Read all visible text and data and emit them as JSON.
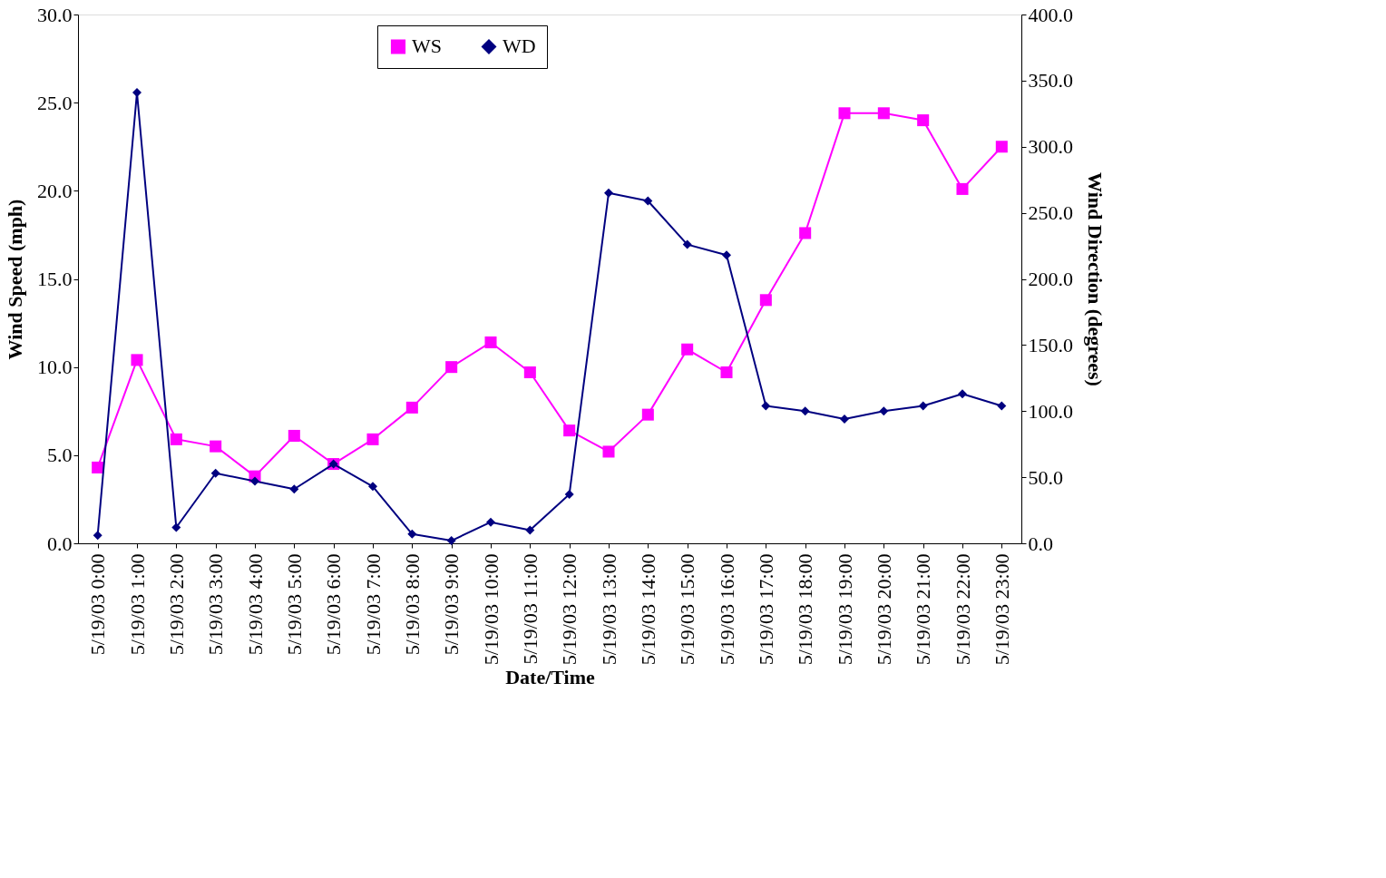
{
  "chart_data": {
    "type": "line",
    "xlabel": "Date/Time",
    "ylabel": "Wind Speed (mph)",
    "y2label": "Wind Direction (degrees)",
    "categories": [
      "5/19/03 0:00",
      "5/19/03 1:00",
      "5/19/03 2:00",
      "5/19/03 3:00",
      "5/19/03 4:00",
      "5/19/03 5:00",
      "5/19/03 6:00",
      "5/19/03 7:00",
      "5/19/03 8:00",
      "5/19/03 9:00",
      "5/19/03 10:00",
      "5/19/03 11:00",
      "5/19/03 12:00",
      "5/19/03 13:00",
      "5/19/03 14:00",
      "5/19/03 15:00",
      "5/19/03 16:00",
      "5/19/03 17:00",
      "5/19/03 18:00",
      "5/19/03 19:00",
      "5/19/03 20:00",
      "5/19/03 21:00",
      "5/19/03 22:00",
      "5/19/03 23:00"
    ],
    "series": [
      {
        "name": "WS",
        "color": "#ff00ff",
        "marker": "square",
        "values": [
          4.3,
          10.4,
          5.9,
          5.5,
          3.8,
          6.1,
          4.5,
          5.9,
          7.7,
          10.0,
          11.4,
          9.7,
          6.4,
          5.2,
          7.3,
          11.0,
          9.7,
          13.8,
          17.6,
          24.4,
          24.4,
          24.0,
          20.1,
          22.5
        ]
      },
      {
        "name": "WD",
        "color": "#000080",
        "marker": "diamond",
        "axis": "y2",
        "values": [
          6,
          341,
          12,
          53,
          47,
          41,
          60,
          43,
          7,
          2,
          16,
          10,
          37,
          265,
          259,
          226,
          218,
          104,
          100,
          94,
          100,
          104,
          113,
          104
        ]
      }
    ],
    "ylim": [
      0,
      30
    ],
    "yticks": [
      {
        "value": 0,
        "label": "0.0"
      },
      {
        "value": 5,
        "label": "5.0"
      },
      {
        "value": 10,
        "label": "10.0"
      },
      {
        "value": 15,
        "label": "15.0"
      },
      {
        "value": 20,
        "label": "20.0"
      },
      {
        "value": 25,
        "label": "25.0"
      },
      {
        "value": 30,
        "label": "30.0"
      }
    ],
    "y2lim": [
      0,
      400
    ],
    "y2ticks": [
      {
        "value": 0,
        "label": "0.0"
      },
      {
        "value": 50,
        "label": "50.0"
      },
      {
        "value": 100,
        "label": "100.0"
      },
      {
        "value": 150,
        "label": "150.0"
      },
      {
        "value": 200,
        "label": "200.0"
      },
      {
        "value": 250,
        "label": "250.0"
      },
      {
        "value": 300,
        "label": "300.0"
      },
      {
        "value": 350,
        "label": "350.0"
      },
      {
        "value": 400,
        "label": "400.0"
      }
    ],
    "grid": false,
    "legend": "top"
  }
}
